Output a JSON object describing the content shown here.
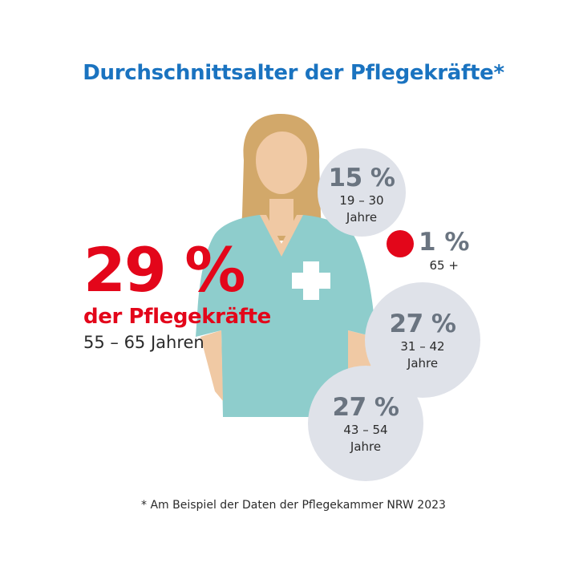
{
  "title": "Durchschnittsalter der Pflegekräfte*",
  "highlight": {
    "value": "29 %",
    "label": "der Pflegekräfte",
    "range": "55 – 65 Jahren"
  },
  "footnote": "* Am Beispiel der Daten der Pflegekammer NRW 2023",
  "colors": {
    "title": "#1a73c0",
    "highlight": "#e3061a",
    "bubble": "#dfe2e9",
    "scrubs": "#8ecdcc",
    "hair": "#d2a86a",
    "skin": "#f0c9a4",
    "marker": "#e3061a"
  },
  "chart_data": {
    "type": "bubble",
    "title": "Durchschnittsalter der Pflegekräfte*",
    "series": [
      {
        "range": "19 – 30",
        "unit": "Jahre",
        "value": 15,
        "label": "15 %"
      },
      {
        "range": "65 +",
        "unit": "",
        "value": 1,
        "label": "1 %"
      },
      {
        "range": "31 – 42",
        "unit": "Jahre",
        "value": 27,
        "label": "27 %"
      },
      {
        "range": "43 – 54",
        "unit": "Jahre",
        "value": 27,
        "label": "27 %"
      },
      {
        "range": "55 – 65",
        "unit": "Jahren",
        "value": 29,
        "label": "29 %"
      }
    ]
  }
}
